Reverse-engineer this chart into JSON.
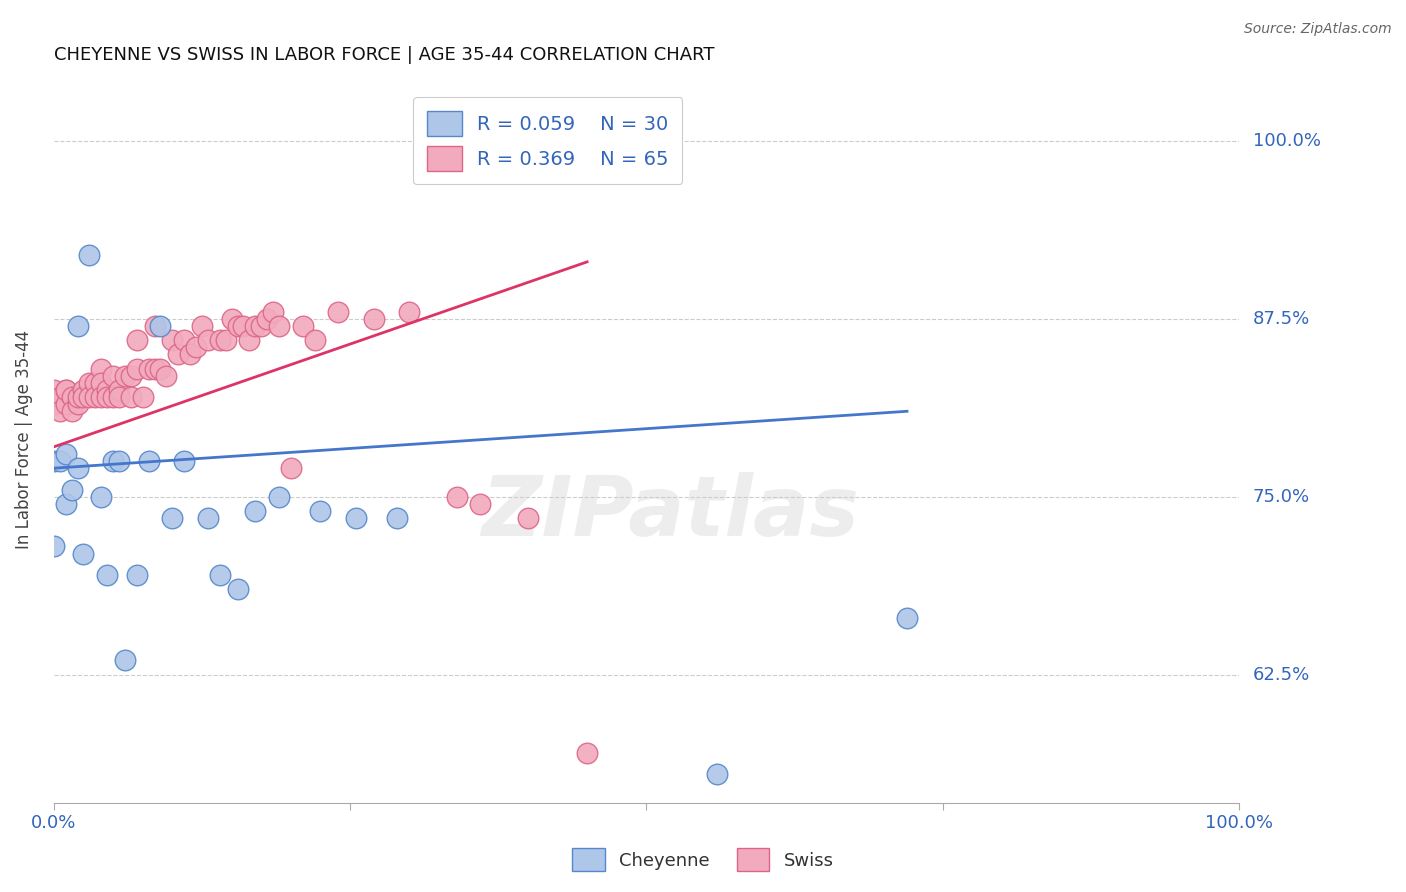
{
  "title": "CHEYENNE VS SWISS IN LABOR FORCE | AGE 35-44 CORRELATION CHART",
  "source": "Source: ZipAtlas.com",
  "ylabel": "In Labor Force | Age 35-44",
  "ytick_labels": [
    "62.5%",
    "75.0%",
    "87.5%",
    "100.0%"
  ],
  "ytick_values": [
    0.625,
    0.75,
    0.875,
    1.0
  ],
  "xlim": [
    0.0,
    1.0
  ],
  "ylim": [
    0.535,
    1.045
  ],
  "watermark": "ZIPatlas",
  "cheyenne_color": "#aec6e8",
  "swiss_color": "#f2aabe",
  "cheyenne_edge": "#5588cc",
  "swiss_edge": "#dd6688",
  "trend_blue": "#4477cc",
  "trend_pink": "#dd3366",
  "cheyenne_x": [
    0.0,
    0.0,
    0.005,
    0.01,
    0.01,
    0.015,
    0.02,
    0.02,
    0.025,
    0.03,
    0.04,
    0.045,
    0.05,
    0.055,
    0.06,
    0.07,
    0.08,
    0.09,
    0.1,
    0.11,
    0.13,
    0.14,
    0.155,
    0.17,
    0.19,
    0.225,
    0.255,
    0.29,
    0.56,
    0.72
  ],
  "cheyenne_y": [
    0.775,
    0.715,
    0.775,
    0.78,
    0.745,
    0.755,
    0.87,
    0.77,
    0.71,
    0.92,
    0.75,
    0.695,
    0.775,
    0.775,
    0.635,
    0.695,
    0.775,
    0.87,
    0.735,
    0.775,
    0.735,
    0.695,
    0.685,
    0.74,
    0.75,
    0.74,
    0.735,
    0.735,
    0.555,
    0.665
  ],
  "swiss_x": [
    0.0,
    0.0,
    0.005,
    0.005,
    0.01,
    0.01,
    0.01,
    0.015,
    0.015,
    0.02,
    0.02,
    0.025,
    0.025,
    0.03,
    0.03,
    0.035,
    0.035,
    0.04,
    0.04,
    0.04,
    0.045,
    0.045,
    0.05,
    0.05,
    0.055,
    0.055,
    0.06,
    0.065,
    0.065,
    0.07,
    0.07,
    0.075,
    0.08,
    0.085,
    0.085,
    0.09,
    0.095,
    0.1,
    0.105,
    0.11,
    0.115,
    0.12,
    0.125,
    0.13,
    0.14,
    0.145,
    0.15,
    0.155,
    0.16,
    0.165,
    0.17,
    0.175,
    0.18,
    0.185,
    0.19,
    0.2,
    0.21,
    0.22,
    0.24,
    0.27,
    0.3,
    0.34,
    0.36,
    0.4,
    0.45
  ],
  "swiss_y": [
    0.825,
    0.815,
    0.82,
    0.81,
    0.825,
    0.815,
    0.825,
    0.82,
    0.81,
    0.815,
    0.82,
    0.825,
    0.82,
    0.83,
    0.82,
    0.83,
    0.82,
    0.84,
    0.83,
    0.82,
    0.825,
    0.82,
    0.835,
    0.82,
    0.825,
    0.82,
    0.835,
    0.835,
    0.82,
    0.86,
    0.84,
    0.82,
    0.84,
    0.87,
    0.84,
    0.84,
    0.835,
    0.86,
    0.85,
    0.86,
    0.85,
    0.855,
    0.87,
    0.86,
    0.86,
    0.86,
    0.875,
    0.87,
    0.87,
    0.86,
    0.87,
    0.87,
    0.875,
    0.88,
    0.87,
    0.77,
    0.87,
    0.86,
    0.88,
    0.875,
    0.88,
    0.75,
    0.745,
    0.735,
    0.57
  ],
  "blue_trend_x": [
    0.0,
    0.72
  ],
  "blue_trend_y": [
    0.77,
    0.81
  ],
  "pink_trend_x": [
    0.0,
    0.45
  ],
  "pink_trend_y": [
    0.785,
    0.915
  ]
}
